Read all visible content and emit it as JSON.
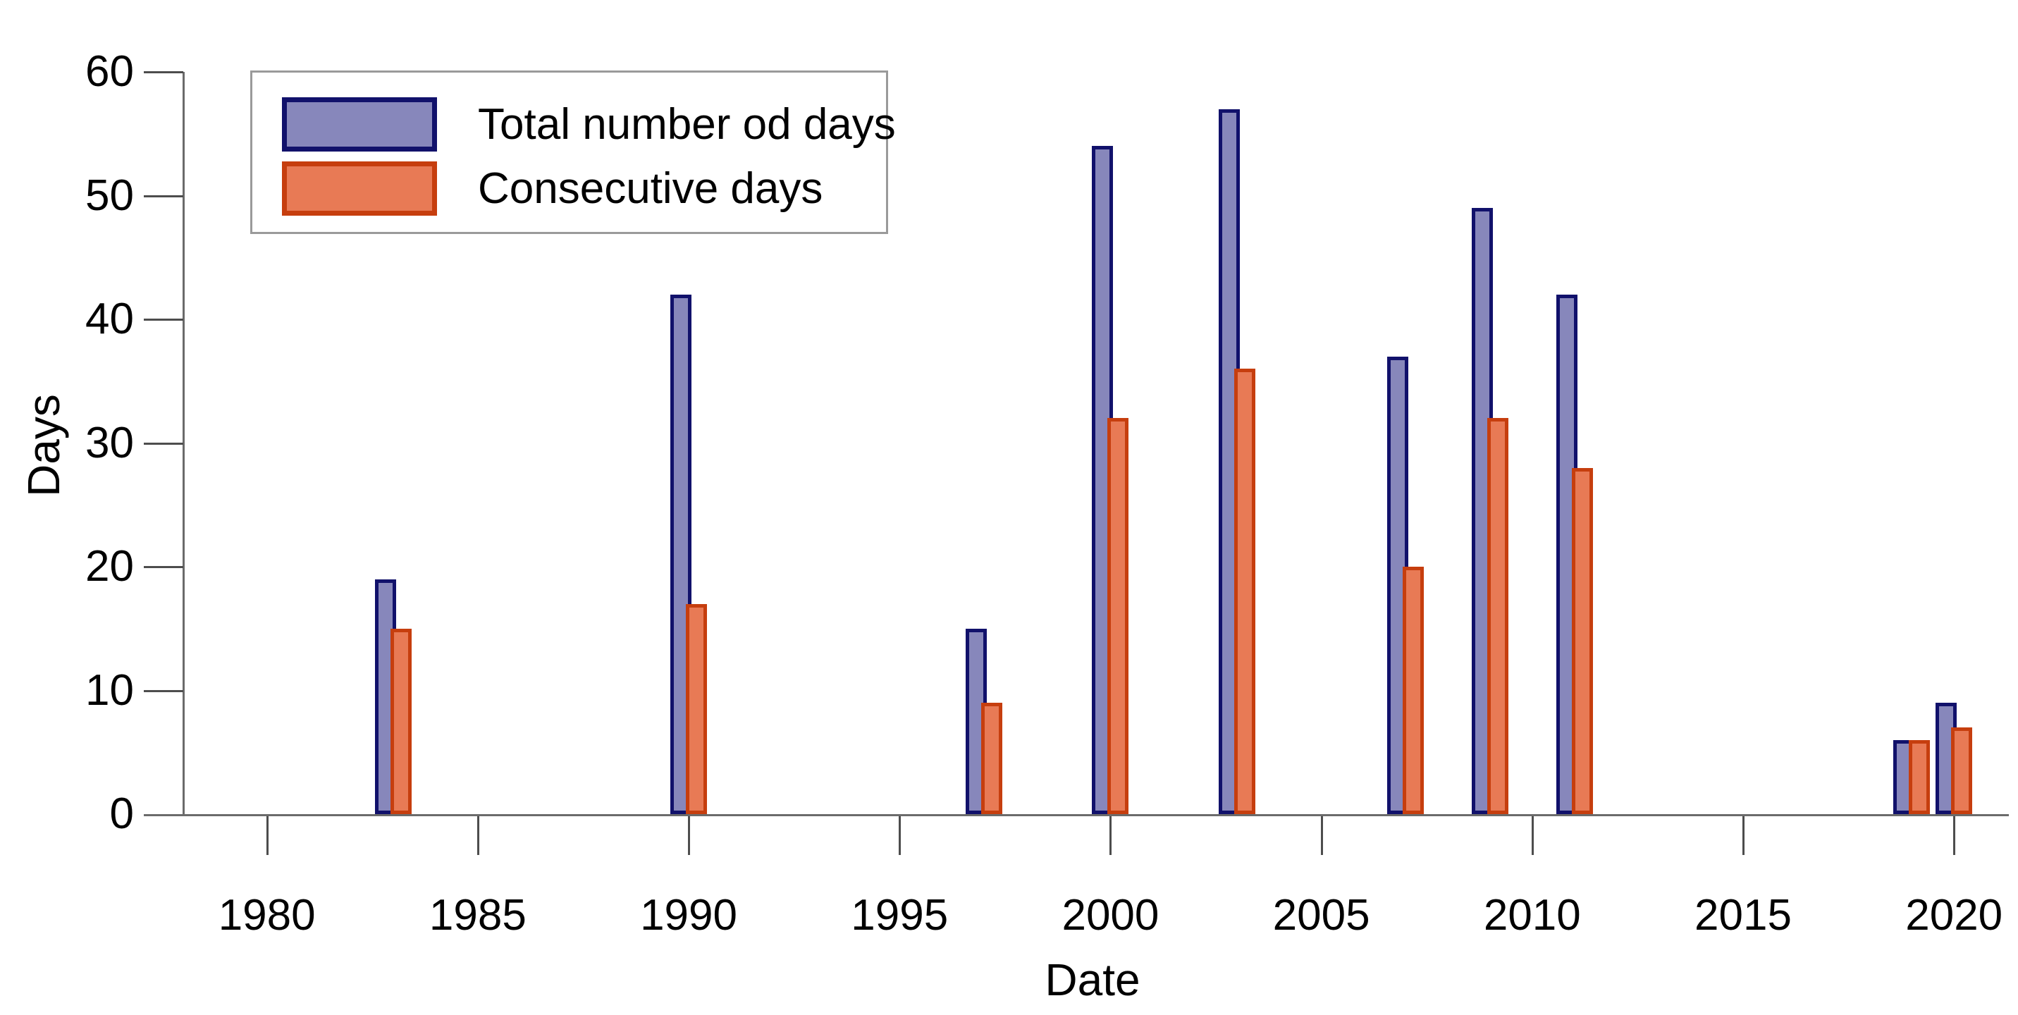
{
  "chart_data": {
    "type": "bar",
    "title": "",
    "xlabel": "Date",
    "ylabel": "Days",
    "x": [
      1983,
      1990,
      1997,
      2000,
      2003,
      2007,
      2009,
      2011,
      2019,
      2020
    ],
    "series": [
      {
        "name": "Total number od days",
        "values": [
          19,
          42,
          15,
          54,
          57,
          37,
          49,
          42,
          6,
          9
        ],
        "fill": "#8787bb",
        "border": "#11116b"
      },
      {
        "name": "Consecutive days",
        "values": [
          15,
          17,
          9,
          32,
          36,
          20,
          32,
          28,
          6,
          7
        ],
        "fill": "#e87a55",
        "border": "#c63e0e"
      }
    ],
    "x_ticks": [
      1980,
      1985,
      1990,
      1995,
      2000,
      2005,
      2010,
      2015,
      2020
    ],
    "y_ticks": [
      0,
      10,
      20,
      30,
      40,
      50,
      60
    ],
    "xlim": [
      1978,
      2021.3
    ],
    "ylim": [
      0,
      60
    ],
    "grid": false,
    "legend_position": "upper-left",
    "axis_color": "#6b6b6b",
    "tick_label_color": "#000000"
  }
}
